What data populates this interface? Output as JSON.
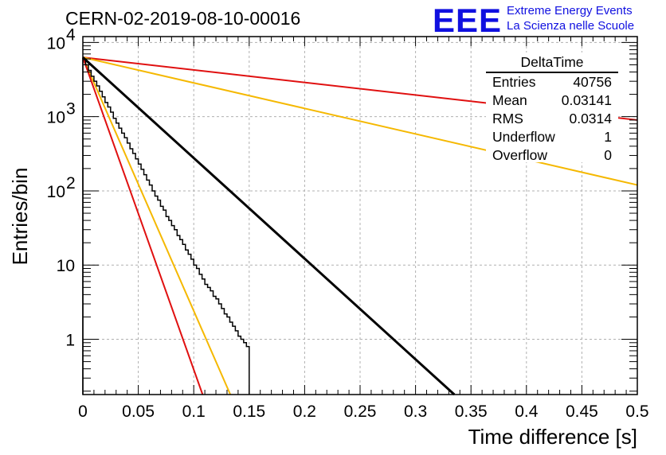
{
  "header": {
    "title": "CERN-02-2019-08-10-00016",
    "logo_text": "EEE",
    "logo_line1": "Extreme Energy Events",
    "logo_line2": "La Scienza nelle Scuole"
  },
  "stats_box": {
    "title": "DeltaTime",
    "rows": [
      {
        "label": "Entries",
        "value": "40756"
      },
      {
        "label": "Mean",
        "value": "0.03141"
      },
      {
        "label": "RMS",
        "value": "0.0314"
      },
      {
        "label": "Underflow",
        "value": "1"
      },
      {
        "label": "Overflow",
        "value": "0"
      }
    ]
  },
  "colors": {
    "histogram": "#000000",
    "fit": "#000000",
    "red_lines": "#e01010",
    "orange_lines": "#f5b800",
    "grid": "#b0b0b0",
    "logo": "#1010e0"
  },
  "chart_data": {
    "type": "line",
    "title": "CERN-02-2019-08-10-00016",
    "xlabel": "Time difference [s]",
    "ylabel": "Entries/bin",
    "xlim": [
      0,
      0.5
    ],
    "ylim": [
      0.18,
      12000
    ],
    "yscale": "log",
    "grid": true,
    "x_ticks": [
      "0",
      "0.05",
      "0.1",
      "0.15",
      "0.2",
      "0.25",
      "0.3",
      "0.35",
      "0.4",
      "0.45",
      "0.5"
    ],
    "y_tick_labels": [
      "1",
      "10"
    ],
    "y_tick_labels_exp": [
      {
        "base": "10",
        "exp": "2"
      },
      {
        "base": "10",
        "exp": "3"
      },
      {
        "base": "10",
        "exp": "4"
      }
    ],
    "histogram": {
      "name": "DeltaTime",
      "bin_width": 0.0025,
      "bin_start": 0,
      "counts": [
        6000,
        5000,
        4200,
        3500,
        3000,
        2600,
        2200,
        1850,
        1550,
        1350,
        1150,
        950,
        820,
        700,
        600,
        520,
        440,
        370,
        320,
        270,
        230,
        195,
        165,
        140,
        120,
        100,
        85,
        75,
        62,
        55,
        45,
        40,
        34,
        30,
        25,
        22,
        19,
        16,
        14,
        12,
        10,
        9,
        7.5,
        6.5,
        5.5,
        5,
        4.5,
        3.8,
        3.5,
        3,
        2.6,
        2.2,
        2.0,
        1.7,
        1.5,
        1.3,
        1.1,
        1.0,
        0.9,
        0.8
      ]
    },
    "series": [
      {
        "kind": "fit",
        "x0": 0,
        "y0": 6300,
        "x1": 0.335,
        "y1": 0.17
      },
      {
        "kind": "red",
        "x0": 0,
        "y0": 6300,
        "x1": 0.5,
        "y1": 900
      },
      {
        "kind": "orange",
        "x0": 0,
        "y0": 6300,
        "x1": 0.5,
        "y1": 120
      },
      {
        "kind": "orange",
        "x0": 0,
        "y0": 6300,
        "x1": 0.133,
        "y1": 0.17
      },
      {
        "kind": "red",
        "x0": 0,
        "y0": 6300,
        "x1": 0.108,
        "y1": 0.17
      }
    ]
  }
}
